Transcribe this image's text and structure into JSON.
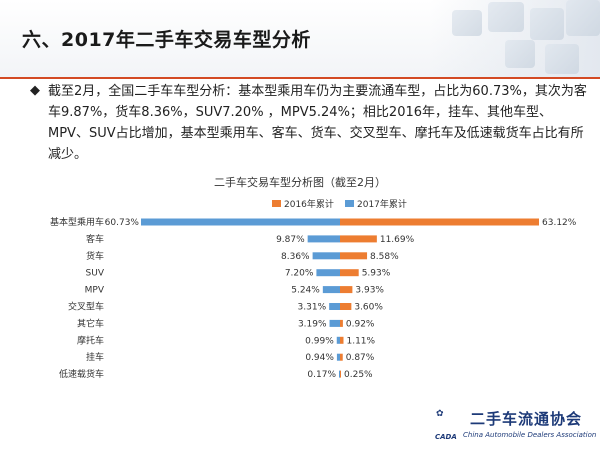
{
  "slide": {
    "title": "六、2017年二手车交易车型分析",
    "bullet_icon": "diamond-bullet-icon",
    "paragraph": "截至2月，全国二手车车型分析：基本型乘用车仍为主要流通车型，占比为60.73%，其次为客车9.87%，货车8.36%，SUV7.20% ，MPV5.24%；相比2016年，挂车、其他车型、MPV、SUV占比增加，基本型乘用车、客车、货车、交叉型车、摩托车及低速载货车占比有所减少。",
    "accent_color": "#d34a24"
  },
  "chart_data": {
    "type": "bar",
    "title": "二手车交易车型分析图（截至2月）",
    "categories": [
      "基本型乘用车",
      "客车",
      "货车",
      "SUV",
      "MPV",
      "交叉型车",
      "其它车",
      "摩托车",
      "挂车",
      "低速载货车"
    ],
    "series": [
      {
        "name": "2017年累计",
        "color": "#5b9bd5",
        "direction": "left",
        "values": [
          60.73,
          9.87,
          8.36,
          7.2,
          5.24,
          3.31,
          3.19,
          0.99,
          0.94,
          0.17
        ],
        "labels": [
          "60.73%",
          "9.87%",
          "8.36%",
          "7.20%",
          "5.24%",
          "3.31%",
          "3.19%",
          "0.99%",
          "0.94%",
          "0.17%"
        ]
      },
      {
        "name": "2016年累计",
        "color": "#ed7d31",
        "direction": "right",
        "values": [
          63.12,
          11.69,
          8.58,
          5.93,
          3.93,
          3.6,
          0.92,
          1.11,
          0.87,
          0.25
        ],
        "labels": [
          "63.12%",
          "11.69%",
          "8.58%",
          "5.93%",
          "3.93%",
          "3.60%",
          "0.92%",
          "1.11%",
          "0.87%",
          "0.25%"
        ]
      }
    ],
    "legend": {
      "position": "top",
      "order": [
        "2016年累计",
        "2017年累计"
      ]
    },
    "grid": false
  },
  "logo": {
    "name": "二手车流通协会",
    "english": "China Automobile Dealers Association",
    "abbr": "CADA",
    "mark": "✿"
  }
}
